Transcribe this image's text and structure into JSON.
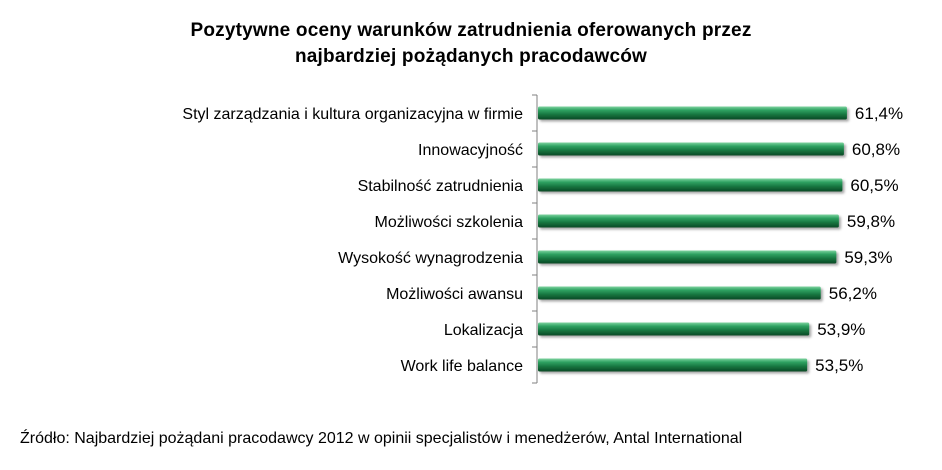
{
  "chart_data": {
    "type": "bar",
    "orientation": "horizontal",
    "title": "Pozytywne oceny warunków zatrudnienia oferowanych przez najbardziej pożądanych pracodawców",
    "title_lines": [
      "Pozytywne oceny warunków zatrudnienia oferowanych przez",
      "najbardziej pożądanych pracodawców"
    ],
    "categories": [
      "Styl zarządzania i kultura organizacyjna w firmie",
      "Innowacyjność",
      "Stabilność zatrudnienia",
      "Możliwości szkolenia",
      "Wysokość wynagrodzenia",
      "Możliwości awansu",
      "Lokalizacja",
      "Work life balance"
    ],
    "values": [
      61.4,
      60.8,
      60.5,
      59.8,
      59.3,
      56.2,
      53.9,
      53.5
    ],
    "value_labels": [
      "61,4%",
      "60,8%",
      "60,5%",
      "59,8%",
      "59,3%",
      "56,2%",
      "53,9%",
      "53,5%"
    ],
    "unit": "%",
    "grid": false,
    "legend": "none",
    "bar_color": "#1e8a4f",
    "bar_color_dark": "#0b4a26"
  },
  "source": "Źródło: Najbardziej pożądani pracodawcy 2012 w opinii specjalistów i menedżerów, Antal International"
}
